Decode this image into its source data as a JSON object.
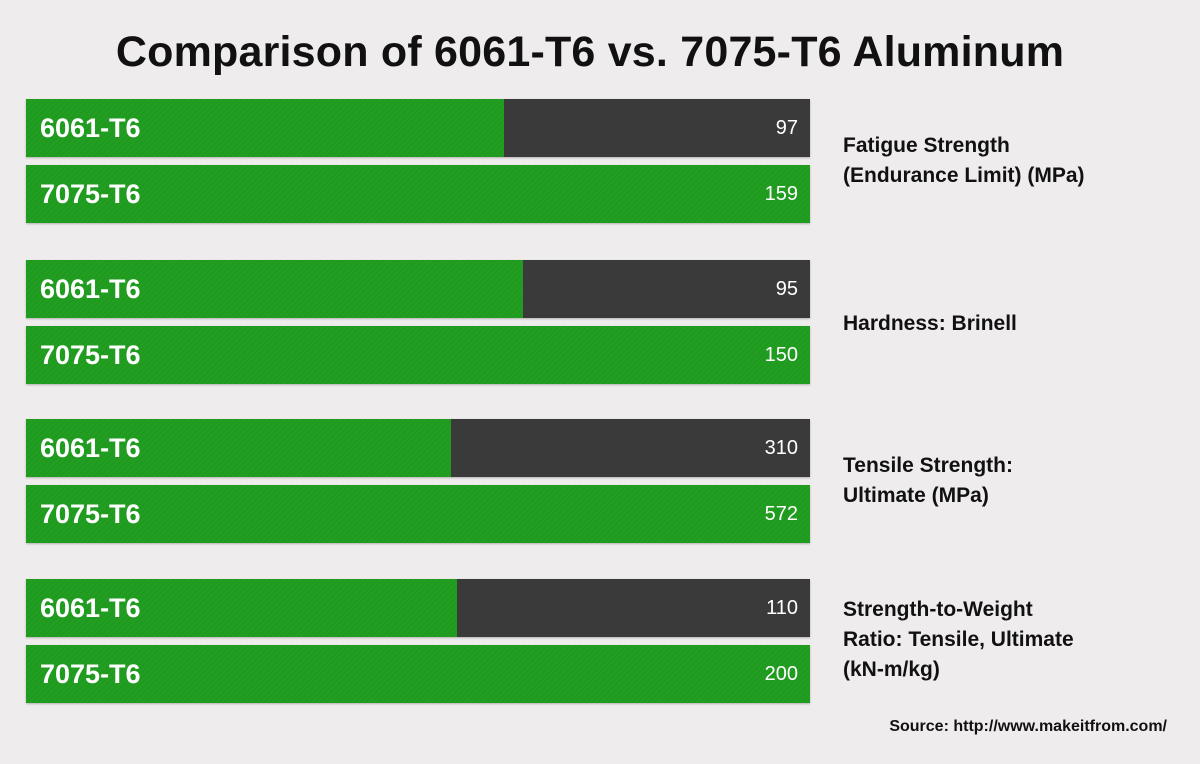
{
  "title": "Comparison of 6061-T6 vs. 7075-T6 Aluminum",
  "source": "Source: http://www.makeitfrom.com/",
  "colors": {
    "green": "#22a022",
    "dark": "#3a3a3a",
    "background": "#efeced"
  },
  "chart_data": {
    "type": "bar",
    "orientation": "horizontal",
    "title": "Comparison of 6061-T6 vs. 7075-T6 Aluminum",
    "series_labels": [
      "6061-T6",
      "7075-T6"
    ],
    "groups": [
      {
        "metric_lines": [
          "Fatigue Strength",
          "(Endurance Limit) (MPa)"
        ],
        "values": [
          97,
          159
        ]
      },
      {
        "metric_lines": [
          "Hardness: Brinell"
        ],
        "values": [
          95,
          150
        ]
      },
      {
        "metric_lines": [
          "Tensile Strength:",
          "Ultimate (MPa)"
        ],
        "values": [
          310,
          572
        ]
      },
      {
        "metric_lines": [
          "Strength-to-Weight",
          "Ratio: Tensile, Ultimate",
          "(kN-m/kg)"
        ],
        "values": [
          110,
          200
        ]
      }
    ]
  }
}
